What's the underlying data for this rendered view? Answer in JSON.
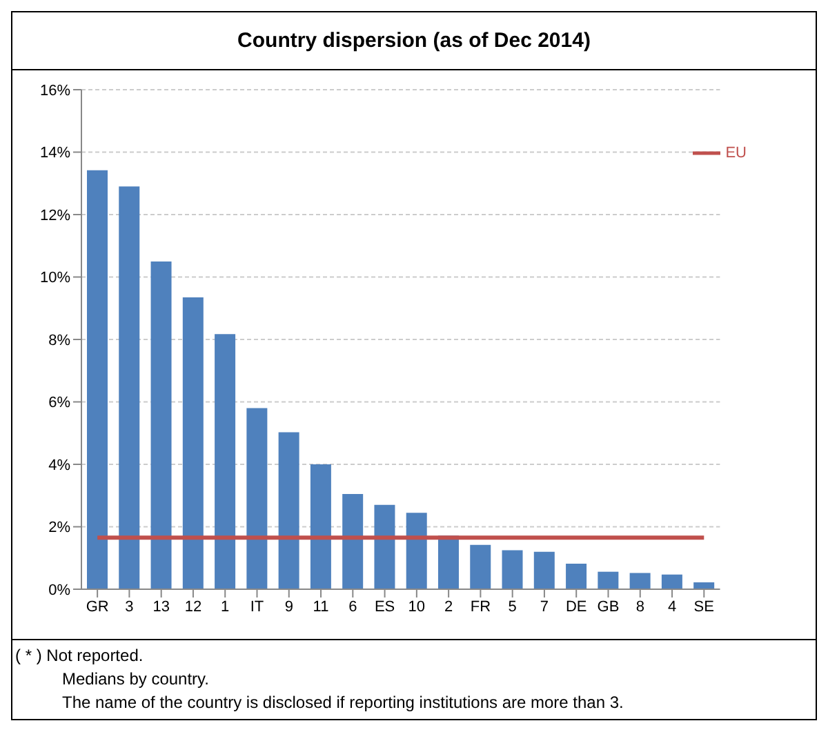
{
  "chart_data": {
    "type": "bar",
    "title": "Country dispersion (as of Dec 2014)",
    "categories": [
      "GR",
      "3",
      "13",
      "12",
      "1",
      "IT",
      "9",
      "11",
      "6",
      "ES",
      "10",
      "2",
      "FR",
      "5",
      "7",
      "DE",
      "GB",
      "8",
      "4",
      "SE"
    ],
    "series": [
      {
        "color": "#4f81bd",
        "values": [
          13.42,
          12.9,
          10.5,
          9.35,
          8.17,
          5.8,
          5.03,
          4.0,
          3.05,
          2.7,
          2.45,
          1.72,
          1.42,
          1.25,
          1.2,
          0.82,
          0.56,
          0.52,
          0.47,
          0.22
        ]
      },
      {
        "type": "line",
        "name": "EU",
        "color": "#c0504d",
        "values": [
          1.65,
          1.65,
          1.65,
          1.65,
          1.65,
          1.65,
          1.65,
          1.65,
          1.65,
          1.65,
          1.65,
          1.65,
          1.65,
          1.65,
          1.65,
          1.65,
          1.65,
          1.65,
          1.65,
          1.65
        ]
      }
    ],
    "ylim": [
      0,
      16
    ],
    "yticks": [
      {
        "value": 0,
        "label": "0%"
      },
      {
        "value": 2,
        "label": "2%"
      },
      {
        "value": 4,
        "label": "4%"
      },
      {
        "value": 6,
        "label": "6%"
      },
      {
        "value": 8,
        "label": "8%"
      },
      {
        "value": 10,
        "label": "10%"
      },
      {
        "value": 12,
        "label": "12%"
      },
      {
        "value": 14,
        "label": "14%"
      },
      {
        "value": 16,
        "label": "16%"
      }
    ],
    "grid": "y",
    "legend": "top right",
    "marker": "none",
    "annotations": [
      "( * ) Not reported.",
      "Medians by country.",
      "The name of the country is disclosed if reporting institutions are more than 3."
    ]
  }
}
